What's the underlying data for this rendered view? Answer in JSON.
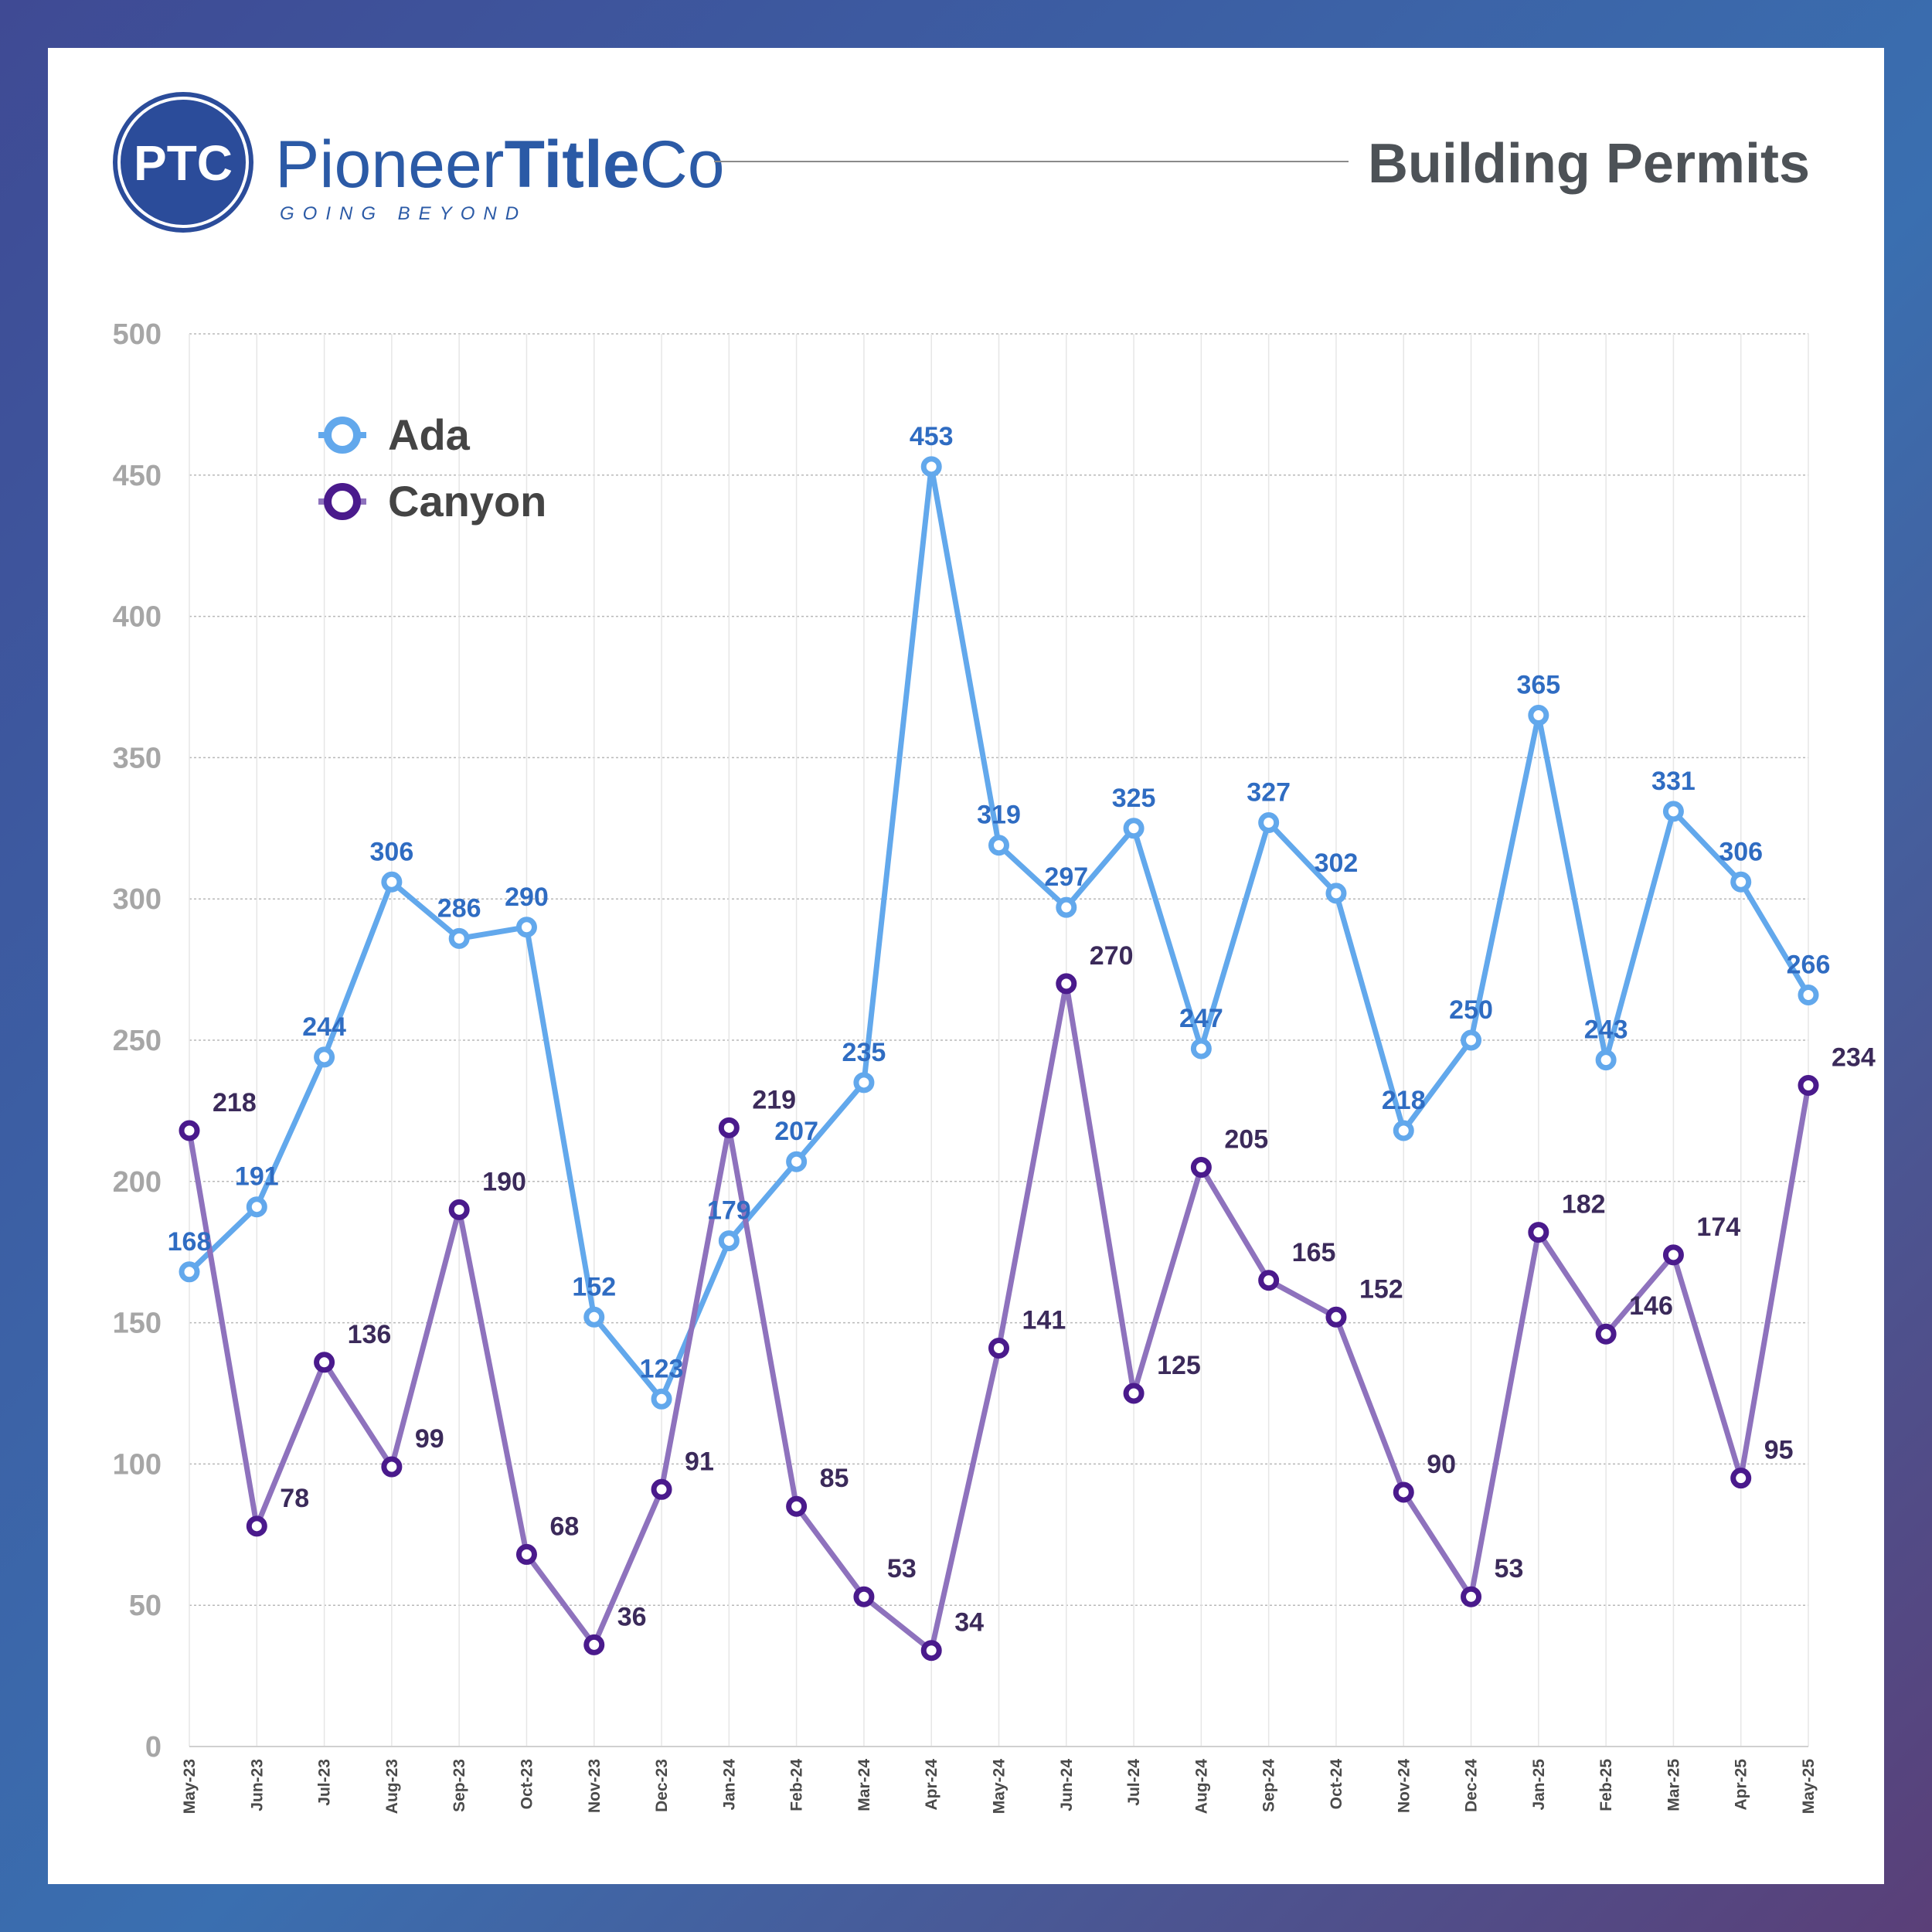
{
  "brand": {
    "logo_monogram": "PTC",
    "name_part1": "Pioneer",
    "name_part2": "Title",
    "name_part3": "Co",
    "tagline": "GOING BEYOND",
    "color": "#2b5aa6"
  },
  "chart_data": {
    "type": "line",
    "title": "Building Permits",
    "categories": [
      "May-23",
      "Jun-23",
      "Jul-23",
      "Aug-23",
      "Sep-23",
      "Oct-23",
      "Nov-23",
      "Dec-23",
      "Jan-24",
      "Feb-24",
      "Mar-24",
      "Apr-24",
      "May-24",
      "Jun-24",
      "Jul-24",
      "Aug-24",
      "Sep-24",
      "Oct-24",
      "Nov-24",
      "Dec-24",
      "Jan-25",
      "Feb-25",
      "Mar-25",
      "Apr-25",
      "May-25"
    ],
    "ylim": [
      0,
      500
    ],
    "yticks": [
      0,
      50,
      100,
      150,
      200,
      250,
      300,
      350,
      400,
      450,
      500
    ],
    "grid": true,
    "legend_position": "top-left",
    "series": [
      {
        "name": "Ada",
        "color": "#62a8ec",
        "label_color": "#2f6cc2",
        "values": [
          168,
          191,
          244,
          306,
          286,
          290,
          152,
          123,
          179,
          207,
          235,
          453,
          319,
          297,
          325,
          247,
          327,
          302,
          218,
          250,
          365,
          243,
          331,
          306,
          266
        ]
      },
      {
        "name": "Canyon",
        "color": "#8e72bd",
        "marker_color": "#4a1a8c",
        "label_color": "#3b2a5a",
        "values": [
          218,
          78,
          136,
          99,
          190,
          68,
          36,
          91,
          219,
          85,
          53,
          34,
          141,
          270,
          125,
          205,
          165,
          152,
          90,
          53,
          182,
          146,
          174,
          95,
          234
        ]
      }
    ]
  }
}
